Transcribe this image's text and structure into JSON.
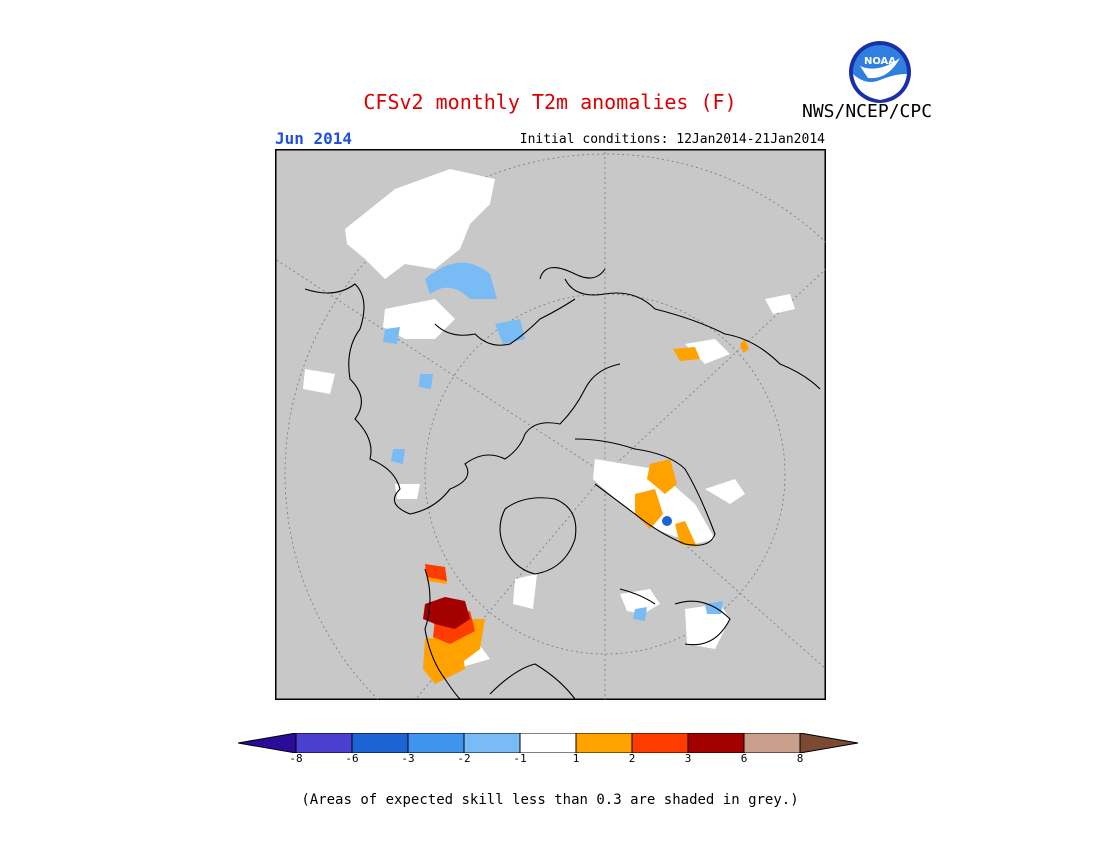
{
  "title": "CFSv2 monthly T2m anomalies (F)",
  "agency": "NWS/NCEP/CPC",
  "logo_text": "NOAA",
  "month": "Jun 2014",
  "initial_conditions": "Initial conditions: 12Jan2014-21Jan2014",
  "footnote": "(Areas of expected skill less than 0.3 are shaded in grey.)",
  "colors": {
    "title": "#dd0000",
    "month": "#1f4fdd",
    "map_background": "#c8c8c8",
    "low_skill_grey": "#c8c8c8"
  },
  "legend": {
    "ticks": [
      "-8",
      "-6",
      "-3",
      "-2",
      "-1",
      "1",
      "2",
      "3",
      "6",
      "8"
    ],
    "bins": [
      {
        "color": "#2a0c99",
        "label": "< -8"
      },
      {
        "color": "#4b3fcf",
        "label": "-8 to -6"
      },
      {
        "color": "#1c64d4",
        "label": "-6 to -3"
      },
      {
        "color": "#3f94ee",
        "label": "-3 to -2"
      },
      {
        "color": "#79bcf5",
        "label": "-2 to -1"
      },
      {
        "color": "#ffffff",
        "label": "-1 to 1"
      },
      {
        "color": "#ffa200",
        "label": "1 to 2"
      },
      {
        "color": "#ff3c00",
        "label": "2 to 3"
      },
      {
        "color": "#a50000",
        "label": "3 to 6"
      },
      {
        "color": "#c8a08c",
        "label": "6 to 8"
      },
      {
        "color": "#7a4a35",
        "label": "> 8"
      }
    ]
  }
}
